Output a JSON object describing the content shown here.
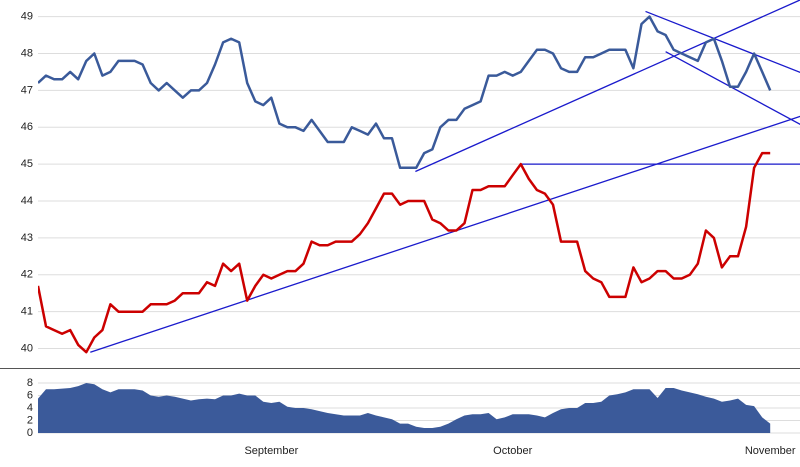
{
  "chart_data": [
    {
      "type": "line",
      "xlim": [
        0,
        94.7
      ],
      "ylim": [
        39.5,
        49.45
      ],
      "yticks": [
        40,
        41,
        42,
        43,
        44,
        45,
        46,
        47,
        48,
        49
      ],
      "grid": true,
      "series": [
        {
          "color": "#3a5a9a",
          "values": [
            47.2,
            47.4,
            47.3,
            47.3,
            47.5,
            47.3,
            47.8,
            48.0,
            47.4,
            47.5,
            47.8,
            47.8,
            47.8,
            47.7,
            47.2,
            47.0,
            47.2,
            47.0,
            46.8,
            47.0,
            47.0,
            47.2,
            47.7,
            48.3,
            48.4,
            48.3,
            47.2,
            46.7,
            46.6,
            46.8,
            46.1,
            46.0,
            46.0,
            45.9,
            46.2,
            45.9,
            45.6,
            45.6,
            45.6,
            46.0,
            45.9,
            45.8,
            46.1,
            45.7,
            45.7,
            44.9,
            44.9,
            44.9,
            45.3,
            45.4,
            46.0,
            46.2,
            46.2,
            46.5,
            46.6,
            46.7,
            47.4,
            47.4,
            47.5,
            47.4,
            47.5,
            47.8,
            48.1,
            48.1,
            48.0,
            47.6,
            47.5,
            47.5,
            47.9,
            47.9,
            48.0,
            48.1,
            48.1,
            48.1,
            47.6,
            48.8,
            49.0,
            48.6,
            48.5,
            48.1,
            48.0,
            47.9,
            47.8,
            48.3,
            48.4,
            47.8,
            47.1,
            47.1,
            47.5,
            48.0,
            47.5,
            47.0
          ]
        },
        {
          "color": "#cc0000",
          "values": [
            41.7,
            40.6,
            40.5,
            40.4,
            40.5,
            40.1,
            39.9,
            40.3,
            40.5,
            41.2,
            41.0,
            41.0,
            41.0,
            41.0,
            41.2,
            41.2,
            41.2,
            41.3,
            41.5,
            41.5,
            41.5,
            41.8,
            41.7,
            42.3,
            42.1,
            42.3,
            41.3,
            41.7,
            42.0,
            41.9,
            42.0,
            42.1,
            42.1,
            42.3,
            42.9,
            42.8,
            42.8,
            42.9,
            42.9,
            42.9,
            43.1,
            43.4,
            43.8,
            44.2,
            44.2,
            43.9,
            44.0,
            44.0,
            44.0,
            43.5,
            43.4,
            43.2,
            43.2,
            43.4,
            44.3,
            44.3,
            44.4,
            44.4,
            44.4,
            44.7,
            45.0,
            44.6,
            44.3,
            44.2,
            43.9,
            42.9,
            42.9,
            42.9,
            42.1,
            41.9,
            41.8,
            41.4,
            41.4,
            41.4,
            42.2,
            41.8,
            41.9,
            42.1,
            42.1,
            41.9,
            41.9,
            42.0,
            42.3,
            43.2,
            43.0,
            42.2,
            42.5,
            42.5,
            43.3,
            44.9,
            45.3,
            45.3
          ]
        }
      ],
      "trendlines": [
        {
          "color": "#1a1acc",
          "x": [
            6.5,
            94.8
          ],
          "values": [
            39.9,
            46.3
          ]
        },
        {
          "color": "#1a1acc",
          "x": [
            46.9,
            94.8
          ],
          "values": [
            44.8,
            49.46
          ]
        },
        {
          "color": "#1a1acc",
          "x": [
            60,
            94.8
          ],
          "values": [
            45.0,
            45.0
          ]
        },
        {
          "color": "#1a1acc",
          "x": [
            75.5,
            94.8
          ],
          "values": [
            49.14,
            47.48
          ]
        },
        {
          "color": "#1a1acc",
          "x": [
            78,
            94.8
          ],
          "values": [
            48.05,
            46.07
          ]
        }
      ]
    },
    {
      "type": "area",
      "xlim": [
        0,
        94.7
      ],
      "ylim": [
        0,
        8
      ],
      "yticks": [
        0,
        2,
        4,
        6,
        8
      ],
      "grid": true,
      "color": "#3b5a9a",
      "categories": [
        null,
        null,
        null,
        null,
        null,
        null,
        null,
        null,
        null,
        null,
        null,
        null,
        null,
        null,
        null,
        null,
        null,
        null,
        null,
        null,
        null,
        null,
        null,
        null,
        null,
        null,
        null,
        null,
        null,
        "September",
        null,
        null,
        null,
        null,
        null,
        null,
        null,
        null,
        null,
        null,
        null,
        null,
        null,
        null,
        null,
        null,
        null,
        null,
        null,
        null,
        null,
        null,
        null,
        null,
        null,
        null,
        null,
        null,
        null,
        "October",
        null,
        null,
        null,
        null,
        null,
        null,
        null,
        null,
        null,
        null,
        null,
        null,
        null,
        null,
        null,
        null,
        null,
        null,
        null,
        null,
        null,
        null,
        null,
        null,
        null,
        null,
        null,
        null,
        null,
        null,
        null,
        "November"
      ],
      "values": [
        5.5,
        7,
        7,
        7.1,
        7.2,
        7.5,
        8,
        7.8,
        7,
        6.5,
        7,
        7,
        7,
        6.8,
        6,
        5.8,
        6,
        5.8,
        5.5,
        5.2,
        5.4,
        5.5,
        5.4,
        6,
        6,
        6.3,
        6,
        6,
        5,
        4.8,
        5,
        4.2,
        4,
        4,
        3.8,
        3.5,
        3.2,
        3,
        2.8,
        2.8,
        2.8,
        3.2,
        2.8,
        2.5,
        2.2,
        1.5,
        1.5,
        1,
        0.8,
        0.8,
        1,
        1.5,
        2.2,
        2.8,
        3,
        3,
        3.2,
        2.2,
        2.5,
        3,
        3,
        3,
        2.8,
        2.5,
        3.2,
        3.8,
        4,
        4,
        4.8,
        4.8,
        5,
        6,
        6.2,
        6.5,
        7,
        7,
        7,
        5.6,
        7.2,
        7.2,
        6.8,
        6.5,
        6.2,
        5.8,
        5.5,
        5,
        5.2,
        5.5,
        4.5,
        4.3,
        2.5,
        1.5
      ]
    }
  ]
}
